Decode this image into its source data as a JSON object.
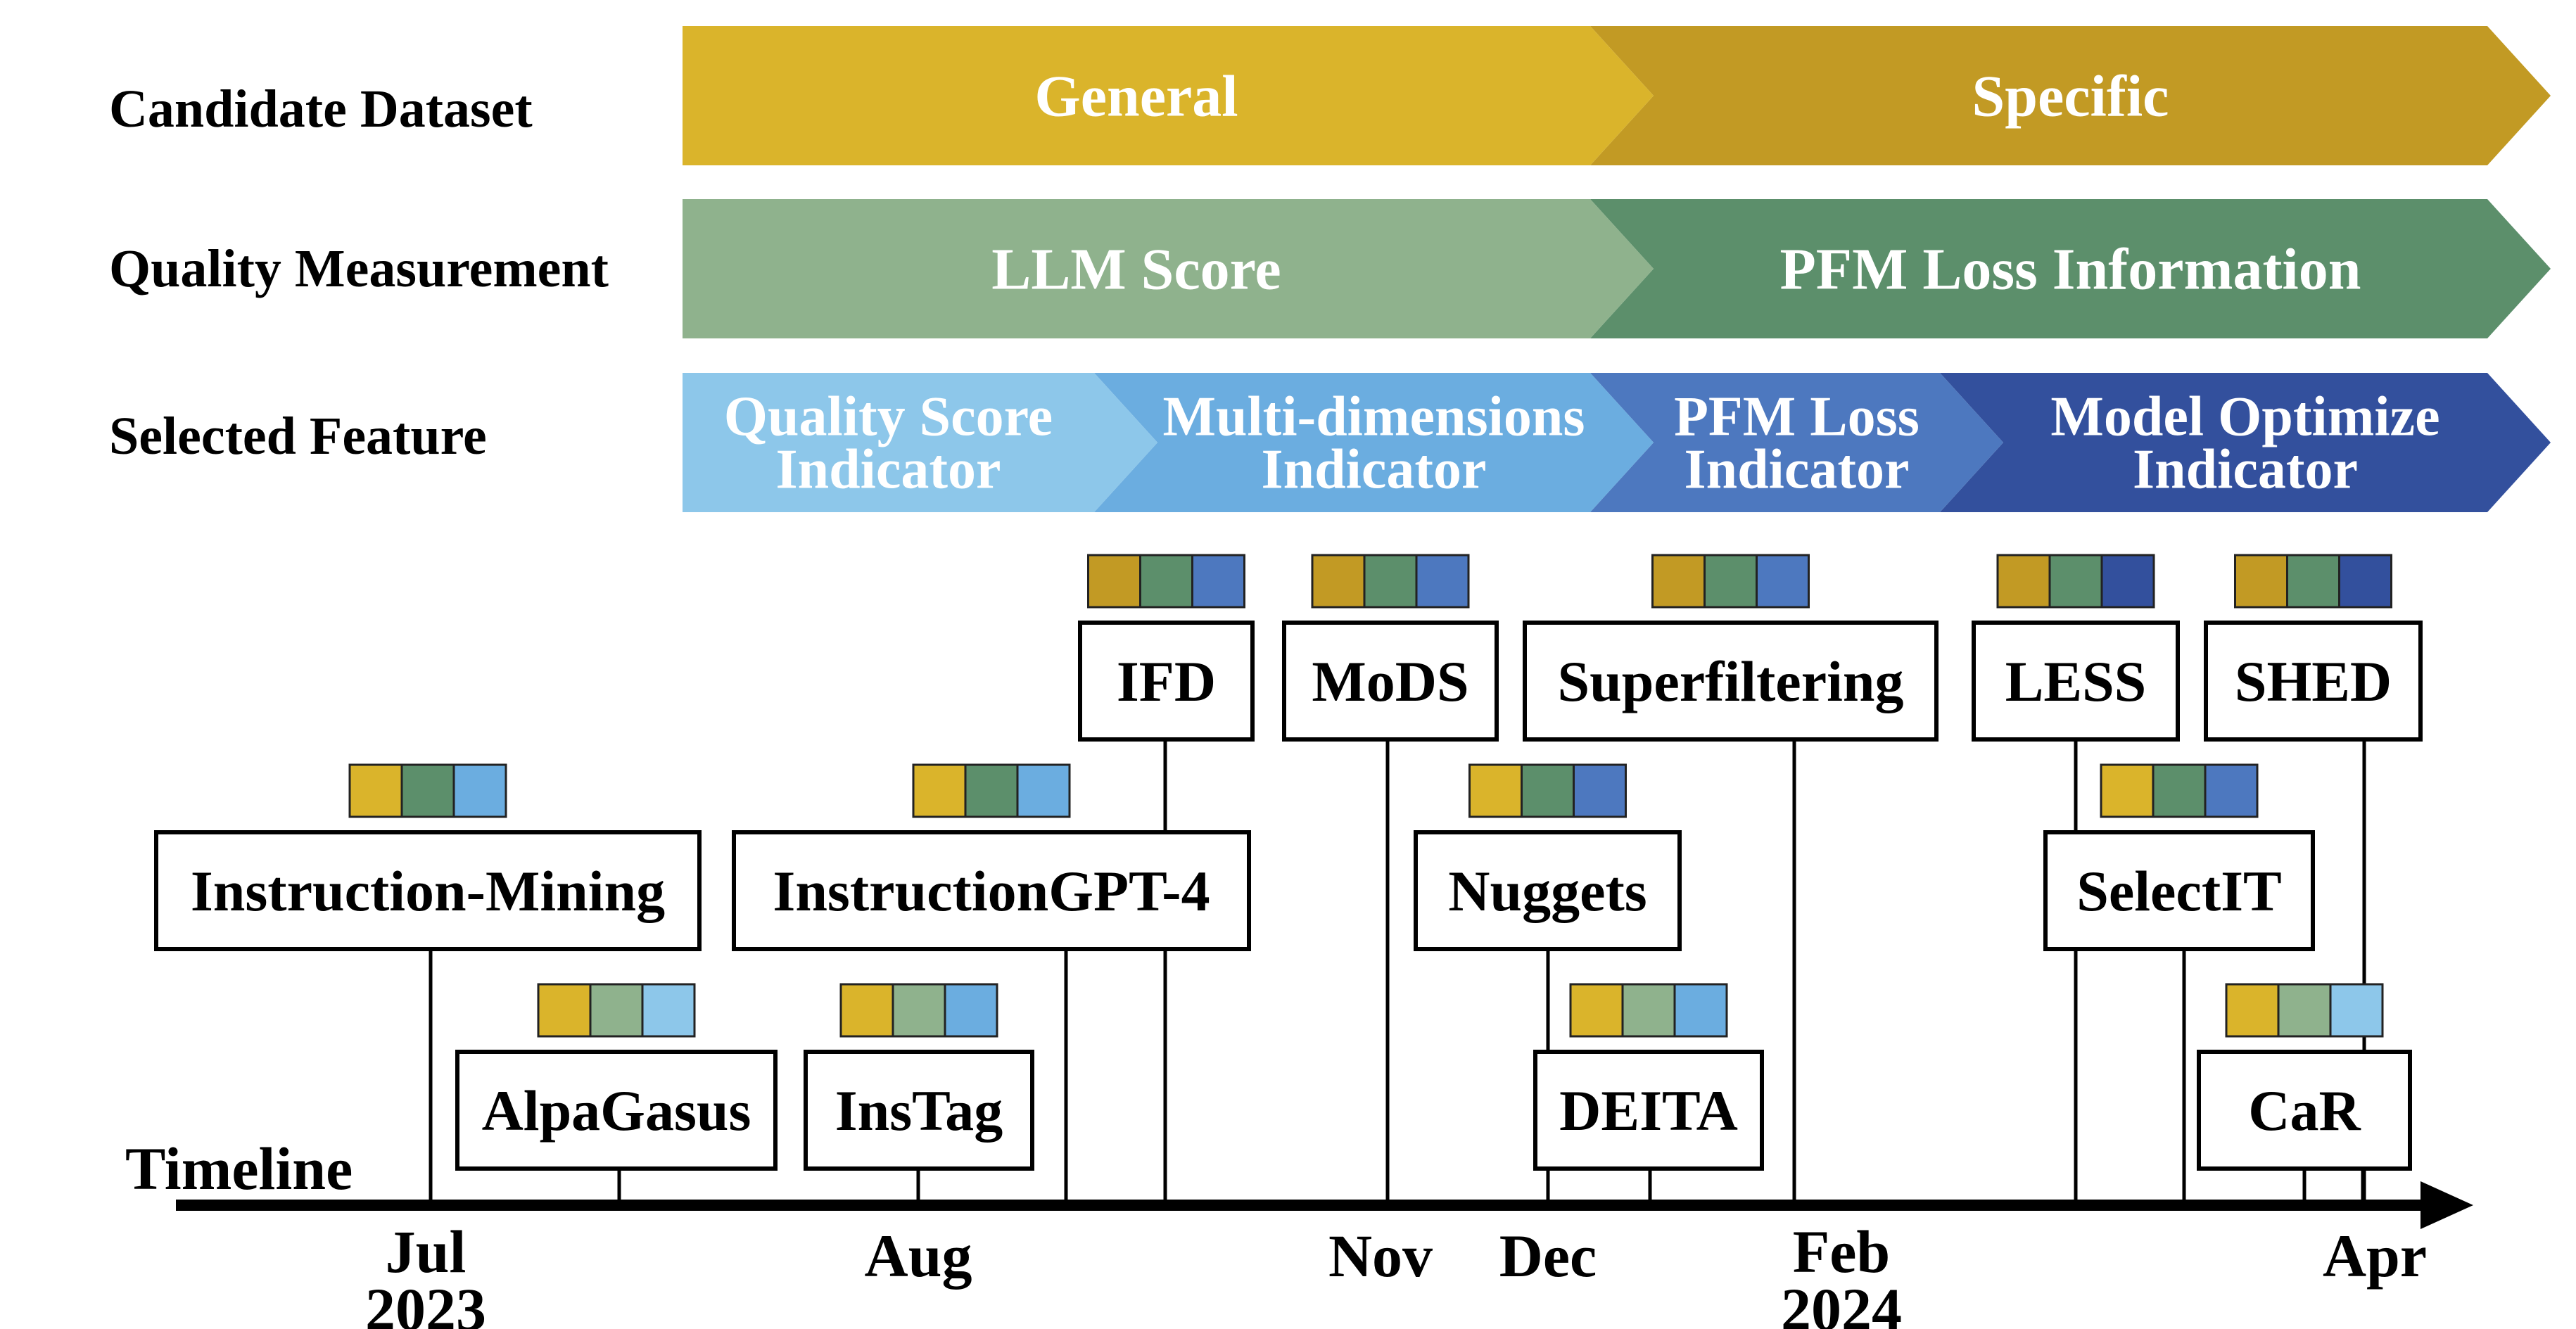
{
  "rows": [
    {
      "label": "Candidate Dataset",
      "segments": [
        "General",
        "Specific"
      ],
      "colors": [
        "#DAB42B",
        "#C29A24"
      ]
    },
    {
      "label": "Quality Measurement",
      "segments": [
        "LLM Score",
        "PFM Loss Information"
      ],
      "colors": [
        "#8FB28D",
        "#5C8F6B"
      ]
    },
    {
      "label": "Selected Feature",
      "segments": [
        "Quality Score\nIndicator",
        "Multi-dimensions\nIndicator",
        "PFM Loss\nIndicator",
        "Model Optimize\nIndicator"
      ],
      "colors": [
        "#8DC7EA",
        "#6BADE0",
        "#4D78BF",
        "#33509D"
      ]
    }
  ],
  "methods": [
    {
      "name": "Instruction-Mining",
      "colors": [
        "#DAB42B",
        "#5C8F6B",
        "#6BADE0"
      ]
    },
    {
      "name": "AlpaGasus",
      "colors": [
        "#DAB42B",
        "#8FB28D",
        "#8DC7EA"
      ]
    },
    {
      "name": "InsTag",
      "colors": [
        "#DAB42B",
        "#8FB28D",
        "#6BADE0"
      ]
    },
    {
      "name": "InstructionGPT-4",
      "colors": [
        "#DAB42B",
        "#5C8F6B",
        "#6BADE0"
      ]
    },
    {
      "name": "IFD",
      "colors": [
        "#C29A24",
        "#5C8F6B",
        "#4D78BF"
      ]
    },
    {
      "name": "MoDS",
      "colors": [
        "#C29A24",
        "#5C8F6B",
        "#4D78BF"
      ]
    },
    {
      "name": "Nuggets",
      "colors": [
        "#DAB42B",
        "#5C8F6B",
        "#4D78BF"
      ]
    },
    {
      "name": "DEITA",
      "colors": [
        "#DAB42B",
        "#8FB28D",
        "#6BADE0"
      ]
    },
    {
      "name": "Superfiltering",
      "colors": [
        "#C29A24",
        "#5C8F6B",
        "#4D78BF"
      ]
    },
    {
      "name": "LESS",
      "colors": [
        "#C29A24",
        "#5C8F6B",
        "#33509D"
      ]
    },
    {
      "name": "SelectIT",
      "colors": [
        "#DAB42B",
        "#5C8F6B",
        "#4D78BF"
      ]
    },
    {
      "name": "SHED",
      "colors": [
        "#C29A24",
        "#5C8F6B",
        "#33509D"
      ]
    },
    {
      "name": "CaR",
      "colors": [
        "#DAB42B",
        "#8FB28D",
        "#8DC7EA"
      ]
    }
  ],
  "timeline": {
    "label": "Timeline",
    "ticks": [
      "Jul\n2023",
      "Aug",
      "Nov",
      "Dec",
      "Feb\n2024",
      "Apr"
    ]
  }
}
